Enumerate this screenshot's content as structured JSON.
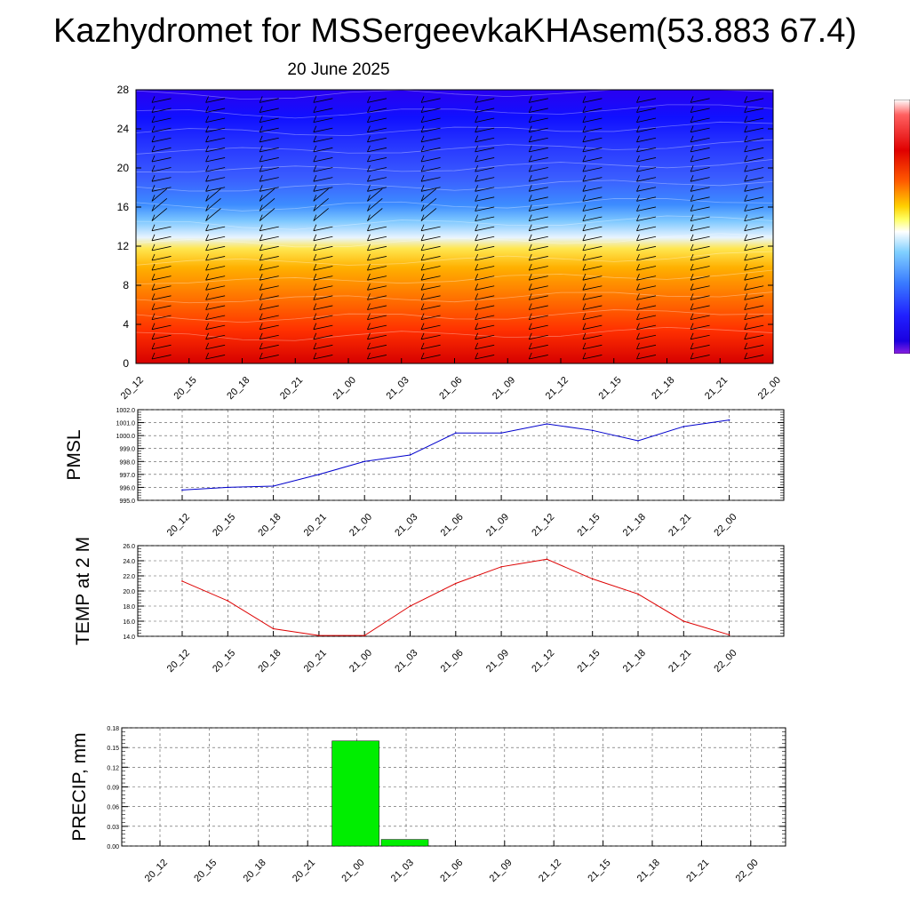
{
  "header": {
    "title": "Kazhydromet for MSSergeevkaKHAsem(53.883 67.4)",
    "date": "20 June 2025"
  },
  "colors": {
    "pmsl_line": "#0000cc",
    "temp_line": "#dd0000",
    "precip_bar": "#00ee00",
    "grid": "#555555"
  },
  "chart_data": [
    {
      "type": "heatmap",
      "title": "",
      "xlabel": "",
      "ylabel": "",
      "x": [
        "20_12",
        "20_15",
        "20_18",
        "20_21",
        "21_00",
        "21_03",
        "21_06",
        "21_09",
        "21_12",
        "21_15",
        "21_18",
        "21_21",
        "22_00"
      ],
      "ylim": [
        0,
        28
      ],
      "yticks": [
        0,
        4,
        8,
        12,
        16,
        20,
        24,
        28
      ],
      "colorscale": [
        "#d60000",
        "#ff4a00",
        "#ff9d00",
        "#ffe34a",
        "#bde8ff",
        "#2f73ff",
        "#1a1aff",
        "#1500d8",
        "#6a00c8"
      ],
      "freezing_level": [
        12.3,
        12.3,
        12.2,
        12.2,
        12.3,
        12.4,
        12.4,
        12.5,
        12.6,
        12.7,
        12.8,
        12.9,
        13.0
      ],
      "wind_barbs": true,
      "grid": false
    },
    {
      "type": "line",
      "title": "",
      "xlabel": "",
      "ylabel": "PMSL",
      "x": [
        "20_12",
        "20_15",
        "20_18",
        "20_21",
        "21_00",
        "21_03",
        "21_06",
        "21_09",
        "21_12",
        "21_15",
        "21_18",
        "21_21",
        "22_00"
      ],
      "ylim": [
        995.0,
        1002.0
      ],
      "yticks": [
        "995.0",
        "996.0",
        "997.0",
        "998.0",
        "999.0",
        "1000.0",
        "1001.0",
        "1002.0"
      ],
      "series": [
        {
          "values": [
            995.8,
            996.0,
            996.1,
            997.0,
            998.0,
            998.5,
            1000.2,
            1000.2,
            1000.9,
            1000.4,
            999.6,
            1000.7,
            1001.2
          ]
        }
      ],
      "grid": true
    },
    {
      "type": "line",
      "title": "",
      "xlabel": "",
      "ylabel": "TEMP at 2 M",
      "x": [
        "20_12",
        "20_15",
        "20_18",
        "20_21",
        "21_00",
        "21_03",
        "21_06",
        "21_09",
        "21_12",
        "21_15",
        "21_18",
        "21_21",
        "22_00"
      ],
      "ylim": [
        14.0,
        26.0
      ],
      "yticks": [
        "14.0",
        "16.0",
        "18.0",
        "20.0",
        "22.0",
        "24.0",
        "26.0"
      ],
      "series": [
        {
          "values": [
            21.3,
            18.7,
            15.0,
            14.1,
            14.1,
            18.0,
            21.0,
            23.2,
            24.2,
            21.6,
            19.6,
            16.0,
            14.2
          ]
        }
      ],
      "grid": true
    },
    {
      "type": "bar",
      "title": "",
      "xlabel": "",
      "ylabel": "PRECIP, mm",
      "categories": [
        "20_12",
        "20_15",
        "20_18",
        "20_21",
        "21_00",
        "21_03",
        "21_06",
        "21_09",
        "21_12",
        "21_15",
        "21_18",
        "21_21",
        "22_00"
      ],
      "values": [
        0,
        0,
        0,
        0,
        0.16,
        0.01,
        0,
        0,
        0,
        0,
        0,
        0,
        0
      ],
      "ylim": [
        0,
        0.18
      ],
      "yticks": [
        "0.00",
        "0.03",
        "0.06",
        "0.09",
        "0.12",
        "0.15",
        "0.18"
      ],
      "grid": true
    }
  ]
}
